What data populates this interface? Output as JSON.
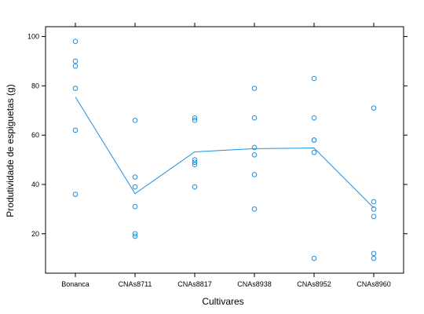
{
  "chart_data": {
    "type": "scatter",
    "xlabel": "Cultivares",
    "ylabel": "Produtividade de espiguetas (g)",
    "categories": [
      "Bonanca",
      "CNAs8711",
      "CNAs8817",
      "CNAs8938",
      "CNAs8952",
      "CNAs8960"
    ],
    "ylim": [
      4,
      104
    ],
    "yticks": [
      20,
      40,
      60,
      80,
      100
    ],
    "grid": false,
    "color": "#1f8fdf",
    "points": [
      [
        98,
        90,
        88,
        79,
        62,
        36
      ],
      [
        66,
        43,
        39,
        31,
        20,
        19
      ],
      [
        67,
        66,
        50,
        49,
        48,
        39
      ],
      [
        79,
        67,
        55,
        52,
        44,
        30
      ],
      [
        83,
        67,
        58,
        58,
        53,
        10
      ],
      [
        71,
        33,
        30,
        27,
        12,
        10
      ]
    ],
    "means": [
      75.5,
      36.3,
      53.2,
      54.5,
      54.8,
      30.5
    ]
  }
}
